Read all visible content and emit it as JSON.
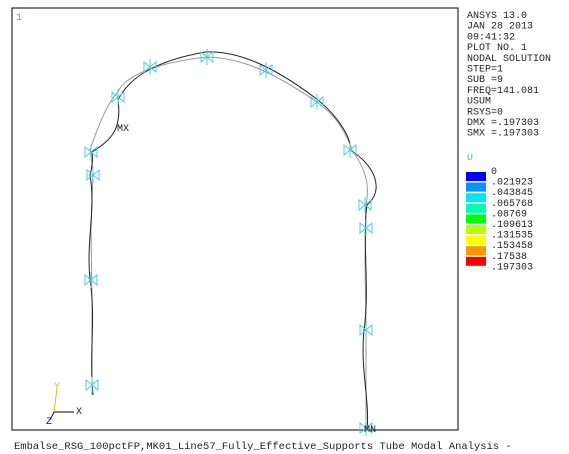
{
  "window_number": "1",
  "info": [
    "ANSYS 13.0",
    "JAN 28 2013",
    "09:41:32",
    "PLOT NO.   1",
    "NODAL SOLUTION",
    "STEP=1",
    "SUB =9",
    "FREQ=141.081",
    "USUM",
    "RSYS=0",
    "DMX =.197303",
    "SMX =.197303"
  ],
  "legend_title": "U",
  "legend_values": [
    "0",
    ".021923",
    ".043845",
    ".065768",
    ".08769",
    ".109613",
    ".131535",
    ".153458",
    ".17538",
    ".197303"
  ],
  "legend_colors": [
    "#0000ff",
    "#0096ff",
    "#00e6ff",
    "#00ffb4",
    "#00ff00",
    "#b4ff00",
    "#ffff00",
    "#ff9600",
    "#ff0000"
  ],
  "markers": {
    "max": "MX",
    "min": "MN"
  },
  "axes": {
    "x": "X",
    "y": "Y",
    "z": "Z"
  },
  "footer": "Embalse_RSG_100pctFP,MK01_Line57_Fully_Effective_Supports Tube Modal Analysis -"
}
